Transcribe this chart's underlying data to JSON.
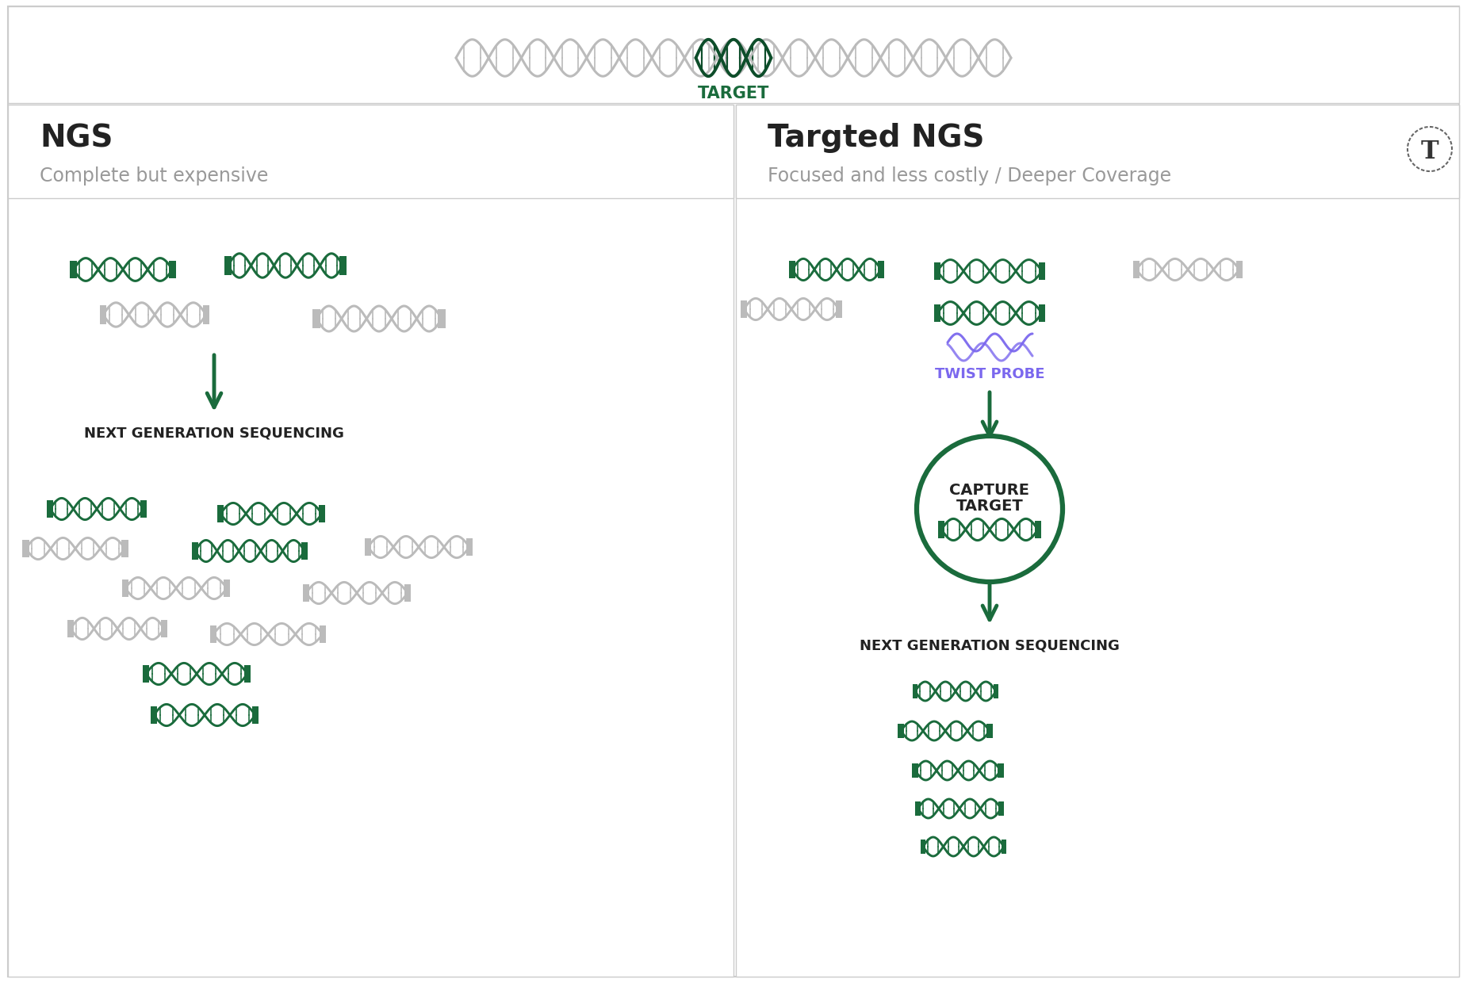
{
  "title_top": "TARGET",
  "title_top_color": "#1a6b3c",
  "ngs_title": "NGS",
  "ngs_subtitle": "Complete but expensive",
  "targeted_title": "Targted NGS",
  "targeted_subtitle": "Focused and less costly / Deeper Coverage",
  "ngs_label": "NEXT GENERATION SEQUENCING",
  "targeted_label": "NEXT GENERATION SEQUENCING",
  "twist_probe_label": "TWIST PROBE",
  "capture_target_line1": "CAPTURE",
  "capture_target_line2": "TARGET",
  "bg_color": "#ffffff",
  "border_color": "#cccccc",
  "dna_gray": "#bbbbbb",
  "dna_green": "#1a6b3c",
  "dna_green_dark": "#0d4d2a",
  "arrow_color": "#1a6b3c",
  "twist_probe_color": "#7b68ee",
  "circle_color": "#1a6b3c",
  "text_dark": "#222222",
  "text_gray": "#999999",
  "t_icon_color": "#333333"
}
